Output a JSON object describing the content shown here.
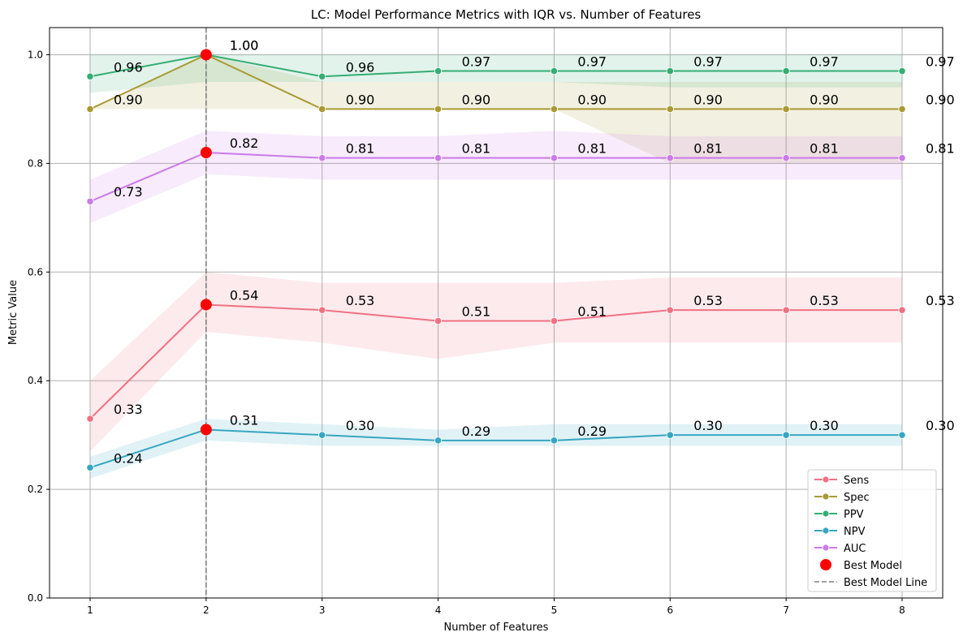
{
  "chart_data": {
    "type": "line",
    "title": "LC: Model Performance Metrics with IQR vs. Number of Features",
    "xlabel": "Number of Features",
    "ylabel": "Metric Value",
    "x": [
      1,
      2,
      3,
      4,
      5,
      6,
      7,
      8
    ],
    "xlim": [
      0.65,
      8.35
    ],
    "ylim": [
      0.0,
      1.05
    ],
    "xticks": [
      "1",
      "2",
      "3",
      "4",
      "5",
      "6",
      "7",
      "8"
    ],
    "yticks": [
      "0.0",
      "0.2",
      "0.4",
      "0.6",
      "0.8",
      "1.0"
    ],
    "grid": true,
    "legend_position": "lower-right",
    "series": [
      {
        "name": "Sens",
        "color": "#f07183",
        "values": [
          0.33,
          0.54,
          0.53,
          0.51,
          0.51,
          0.53,
          0.53,
          0.53
        ],
        "iqr_low": [
          0.27,
          0.49,
          0.47,
          0.44,
          0.47,
          0.47,
          0.47,
          0.47
        ],
        "iqr_high": [
          0.4,
          0.6,
          0.58,
          0.58,
          0.58,
          0.59,
          0.59,
          0.59
        ],
        "labels": [
          "0.33",
          "0.54",
          "0.53",
          "0.51",
          "0.51",
          "0.53",
          "0.53",
          "0.53"
        ]
      },
      {
        "name": "Spec",
        "color": "#a99a34",
        "values": [
          0.9,
          1.0,
          0.9,
          0.9,
          0.9,
          0.9,
          0.9,
          0.9
        ],
        "iqr_low": [
          0.9,
          0.9,
          0.9,
          0.9,
          0.9,
          0.8,
          0.8,
          0.8
        ],
        "iqr_high": [
          0.9,
          1.0,
          0.95,
          0.95,
          0.95,
          0.95,
          0.95,
          0.95
        ],
        "labels": [
          "0.90",
          "1.00",
          "0.90",
          "0.90",
          "0.90",
          "0.90",
          "0.90",
          "0.90"
        ]
      },
      {
        "name": "PPV",
        "color": "#35ad74",
        "values": [
          0.96,
          1.0,
          0.96,
          0.97,
          0.97,
          0.97,
          0.97,
          0.97
        ],
        "iqr_low": [
          0.93,
          0.95,
          0.95,
          0.95,
          0.95,
          0.94,
          0.94,
          0.94
        ],
        "iqr_high": [
          1.0,
          1.0,
          1.0,
          1.0,
          1.0,
          1.0,
          1.0,
          1.0
        ],
        "labels": [
          "0.96",
          "1.00",
          "0.96",
          "0.97",
          "0.97",
          "0.97",
          "0.97",
          "0.97"
        ]
      },
      {
        "name": "NPV",
        "color": "#37a7c1",
        "values": [
          0.24,
          0.31,
          0.3,
          0.29,
          0.29,
          0.3,
          0.3,
          0.3
        ],
        "iqr_low": [
          0.22,
          0.29,
          0.28,
          0.28,
          0.28,
          0.28,
          0.28,
          0.28
        ],
        "iqr_high": [
          0.26,
          0.33,
          0.32,
          0.31,
          0.32,
          0.32,
          0.32,
          0.32
        ],
        "labels": [
          "0.24",
          "0.31",
          "0.30",
          "0.29",
          "0.29",
          "0.30",
          "0.30",
          "0.30"
        ]
      },
      {
        "name": "AUC",
        "color": "#cc7ae9",
        "values": [
          0.73,
          0.82,
          0.81,
          0.81,
          0.81,
          0.81,
          0.81,
          0.81
        ],
        "iqr_low": [
          0.69,
          0.78,
          0.77,
          0.77,
          0.77,
          0.77,
          0.77,
          0.77
        ],
        "iqr_high": [
          0.77,
          0.86,
          0.85,
          0.85,
          0.86,
          0.85,
          0.85,
          0.85
        ],
        "labels": [
          "0.73",
          "0.82",
          "0.81",
          "0.81",
          "0.81",
          "0.81",
          "0.81",
          "0.81"
        ]
      }
    ],
    "best_model": {
      "name": "Best Model",
      "x": 2,
      "points": [
        1.0,
        0.54,
        0.82,
        0.31
      ],
      "color": "#ff0000"
    },
    "best_model_line": {
      "name": "Best Model Line",
      "x": 2,
      "color": "#808080"
    }
  }
}
